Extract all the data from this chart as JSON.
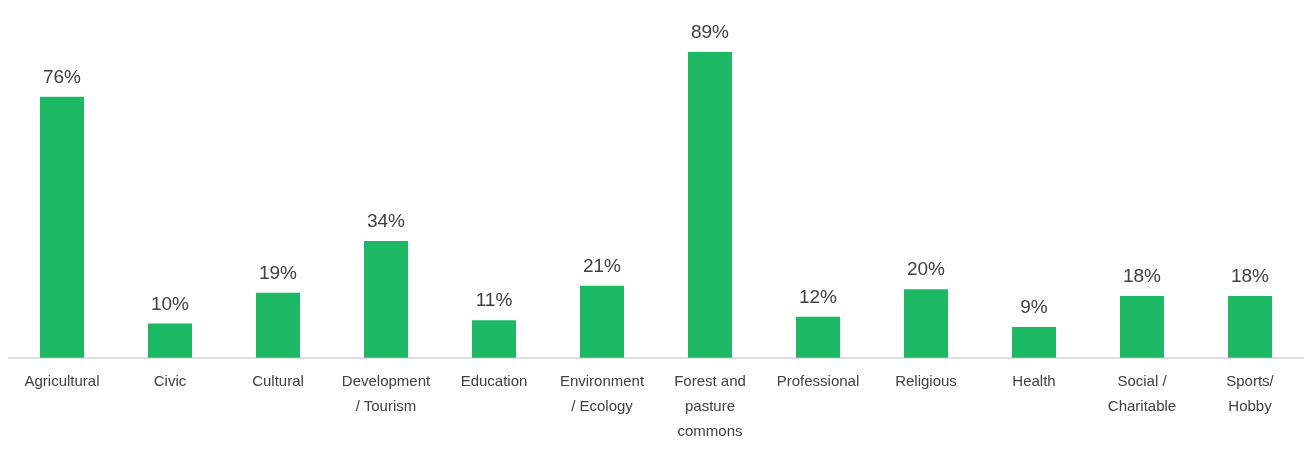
{
  "chart_data": {
    "type": "bar",
    "categories": [
      "Agricultural",
      "Civic",
      "Cultural",
      "Development / Tourism",
      "Education",
      "Environment / Ecology",
      "Forest and pasture commons",
      "Professional",
      "Religious",
      "Health",
      "Social / Charitable",
      "Sports/ Hobby"
    ],
    "values": [
      76,
      10,
      19,
      34,
      11,
      21,
      89,
      12,
      20,
      9,
      18,
      18
    ],
    "value_labels": [
      "76%",
      "10%",
      "19%",
      "34%",
      "11%",
      "21%",
      "89%",
      "12%",
      "20%",
      "9%",
      "18%",
      "18%"
    ],
    "color": "#1db863",
    "grid": false,
    "legend": false
  }
}
